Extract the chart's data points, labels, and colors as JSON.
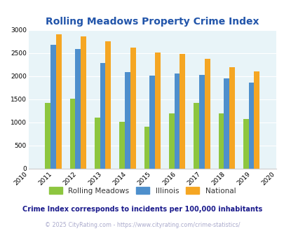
{
  "title": "Rolling Meadows Property Crime Index",
  "years": [
    2010,
    2011,
    2012,
    2013,
    2014,
    2015,
    2016,
    2017,
    2018,
    2019,
    2020
  ],
  "bar_years": [
    2011,
    2012,
    2013,
    2014,
    2015,
    2016,
    2017,
    2018,
    2019
  ],
  "rolling_meadows": [
    1420,
    1510,
    1110,
    1020,
    900,
    1200,
    1420,
    1200,
    1070
  ],
  "illinois": [
    2680,
    2590,
    2280,
    2090,
    2010,
    2060,
    2030,
    1960,
    1860
  ],
  "national": [
    2900,
    2860,
    2760,
    2620,
    2510,
    2480,
    2370,
    2200,
    2110
  ],
  "color_rolling_meadows": "#8dc63f",
  "color_illinois": "#4e8fcc",
  "color_national": "#f5a623",
  "ylim": [
    0,
    3000
  ],
  "yticks": [
    0,
    500,
    1000,
    1500,
    2000,
    2500,
    3000
  ],
  "bg_color": "#e8f4f8",
  "title_color": "#2255aa",
  "legend_labels": [
    "Rolling Meadows",
    "Illinois",
    "National"
  ],
  "subtitle": "Crime Index corresponds to incidents per 100,000 inhabitants",
  "subtitle_color": "#1a1a8c",
  "footer": "© 2025 CityRating.com - https://www.cityrating.com/crime-statistics/",
  "footer_color": "#aaaacc",
  "bar_width": 0.22
}
